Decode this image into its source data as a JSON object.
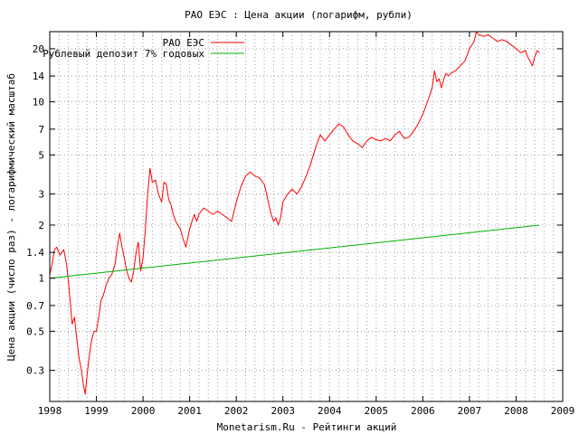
{
  "chart_data": {
    "type": "line",
    "title": "РАО ЕЭС : Цена акции (логарифм, рубли)",
    "xlabel": "Monetarism.Ru - Рейтинги акций",
    "ylabel": "Цена акции (число раз) - логарифмический масштаб",
    "y_scale": "log",
    "xlim": [
      1998,
      2009
    ],
    "ylim": [
      0.2,
      25
    ],
    "x_ticks": [
      "1998",
      "1999",
      "2000",
      "2001",
      "2002",
      "2003",
      "2004",
      "2005",
      "2006",
      "2007",
      "2008",
      "2009"
    ],
    "y_ticks": [
      0.3,
      0.5,
      0.7,
      1,
      1.4,
      2,
      3,
      5,
      7,
      10,
      14,
      20
    ],
    "y_tick_labels": [
      "0.3",
      "0.5",
      "0.7",
      "1",
      "1.4",
      "2",
      "3",
      "5",
      "7",
      "10",
      "14",
      "20"
    ],
    "grid": true,
    "legend_position": "top-left",
    "series": [
      {
        "name": "РАО ЕЭС",
        "color": "#ff0000",
        "x": [
          1998.0,
          1998.05,
          1998.1,
          1998.15,
          1998.22,
          1998.3,
          1998.36,
          1998.42,
          1998.48,
          1998.53,
          1998.58,
          1998.63,
          1998.68,
          1998.72,
          1998.76,
          1998.8,
          1998.84,
          1998.9,
          1998.95,
          1999.0,
          1999.05,
          1999.1,
          1999.15,
          1999.2,
          1999.27,
          1999.33,
          1999.4,
          1999.45,
          1999.5,
          1999.55,
          1999.6,
          1999.65,
          1999.7,
          1999.75,
          1999.8,
          1999.85,
          1999.9,
          1999.95,
          2000.0,
          2000.05,
          2000.1,
          2000.15,
          2000.2,
          2000.27,
          2000.33,
          2000.4,
          2000.45,
          2000.5,
          2000.55,
          2000.6,
          2000.65,
          2000.7,
          2000.75,
          2000.8,
          2000.85,
          2000.92,
          2001.0,
          2001.05,
          2001.1,
          2001.15,
          2001.2,
          2001.3,
          2001.4,
          2001.5,
          2001.6,
          2001.7,
          2001.8,
          2001.9,
          2002.0,
          2002.1,
          2002.2,
          2002.3,
          2002.4,
          2002.5,
          2002.6,
          2002.65,
          2002.7,
          2002.75,
          2002.8,
          2002.85,
          2002.9,
          2002.95,
          2003.0,
          2003.1,
          2003.2,
          2003.3,
          2003.4,
          2003.5,
          2003.6,
          2003.7,
          2003.8,
          2003.9,
          2004.0,
          2004.1,
          2004.2,
          2004.3,
          2004.4,
          2004.5,
          2004.6,
          2004.7,
          2004.8,
          2004.9,
          2005.0,
          2005.1,
          2005.2,
          2005.3,
          2005.4,
          2005.5,
          2005.6,
          2005.7,
          2005.8,
          2005.9,
          2006.0,
          2006.1,
          2006.2,
          2006.25,
          2006.3,
          2006.35,
          2006.4,
          2006.45,
          2006.5,
          2006.55,
          2006.6,
          2006.7,
          2006.8,
          2006.9,
          2007.0,
          2007.1,
          2007.15,
          2007.2,
          2007.3,
          2007.4,
          2007.5,
          2007.6,
          2007.7,
          2007.8,
          2007.9,
          2008.0,
          2008.1,
          2008.2,
          2008.25,
          2008.3,
          2008.35,
          2008.4,
          2008.45,
          2008.5
        ],
        "values": [
          1.05,
          1.2,
          1.45,
          1.5,
          1.35,
          1.45,
          1.2,
          0.85,
          0.55,
          0.6,
          0.45,
          0.35,
          0.3,
          0.25,
          0.22,
          0.28,
          0.35,
          0.45,
          0.5,
          0.5,
          0.6,
          0.75,
          0.8,
          0.9,
          1.0,
          1.05,
          1.2,
          1.5,
          1.8,
          1.5,
          1.3,
          1.1,
          1.0,
          0.95,
          1.1,
          1.4,
          1.6,
          1.1,
          1.3,
          1.9,
          3.0,
          4.2,
          3.5,
          3.6,
          3.0,
          2.7,
          3.5,
          3.4,
          2.8,
          2.6,
          2.3,
          2.1,
          2.0,
          1.9,
          1.7,
          1.5,
          1.9,
          2.1,
          2.3,
          2.1,
          2.3,
          2.5,
          2.4,
          2.3,
          2.4,
          2.3,
          2.2,
          2.1,
          2.7,
          3.3,
          3.8,
          4.0,
          3.8,
          3.7,
          3.4,
          3.0,
          2.6,
          2.3,
          2.1,
          2.2,
          2.0,
          2.2,
          2.7,
          3.0,
          3.2,
          3.0,
          3.3,
          3.8,
          4.5,
          5.5,
          6.5,
          6.0,
          6.5,
          7.0,
          7.5,
          7.2,
          6.5,
          6.0,
          5.8,
          5.5,
          6.0,
          6.3,
          6.1,
          6.0,
          6.2,
          6.0,
          6.5,
          6.8,
          6.2,
          6.3,
          6.8,
          7.5,
          8.5,
          10.0,
          12.0,
          15.0,
          13.0,
          13.5,
          12.0,
          13.5,
          14.5,
          14.0,
          14.5,
          15.0,
          16.0,
          17.0,
          20.0,
          22.0,
          25.0,
          24.0,
          23.5,
          24.0,
          23.0,
          22.0,
          22.5,
          22.0,
          21.0,
          20.0,
          19.0,
          19.5,
          18.0,
          17.0,
          16.0,
          18.0,
          19.5,
          19.0
        ]
      },
      {
        "name": "Рублевый депозит 7% годовых",
        "color": "#00b000",
        "x": [
          1998.0,
          2008.5
        ],
        "values": [
          1.0,
          2.0
        ]
      }
    ]
  }
}
